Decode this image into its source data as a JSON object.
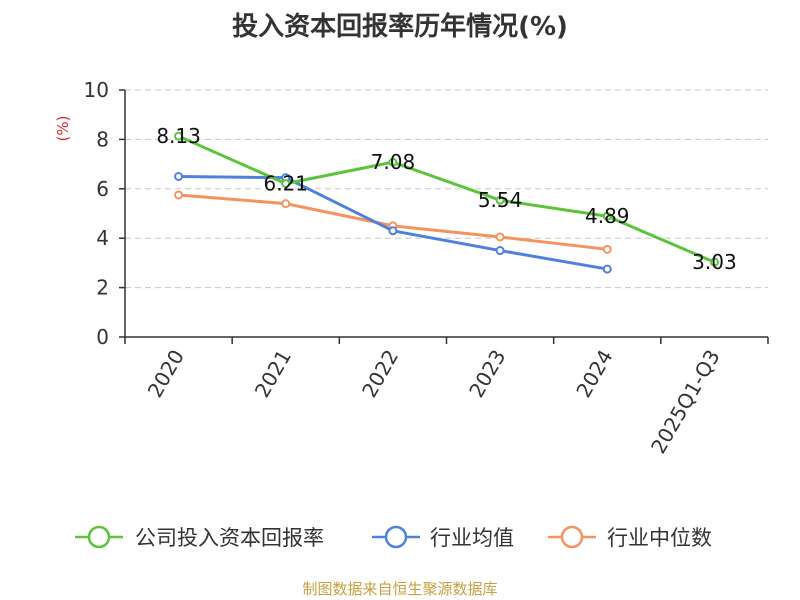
{
  "title": "投入资本回报率历年情况(%)",
  "source_note": "制图数据来自恒生聚源数据库",
  "chart_data": {
    "type": "line",
    "title": "投入资本回报率历年情况(%)",
    "ylabel": "(%)",
    "xlabel": "",
    "ylim": [
      0,
      10
    ],
    "yticks": [
      0,
      2,
      4,
      6,
      8,
      10
    ],
    "grid": true,
    "legend_position": "bottom",
    "categories": [
      "2020",
      "2021",
      "2022",
      "2023",
      "2024",
      "2025Q1-Q3"
    ],
    "series": [
      {
        "name": "公司投入资本回报率",
        "color": "#5cc43a",
        "values": [
          8.13,
          6.21,
          7.08,
          5.54,
          4.89,
          3.03
        ],
        "labels": [
          "8.13",
          "6.21",
          "7.08",
          "5.54",
          "4.89",
          "3.03"
        ]
      },
      {
        "name": "行业均值",
        "color": "#4f81dc",
        "values": [
          6.5,
          6.45,
          4.3,
          3.5,
          2.75,
          null
        ]
      },
      {
        "name": "行业中位数",
        "color": "#f4935f",
        "values": [
          5.75,
          5.4,
          4.5,
          4.05,
          3.55,
          null
        ]
      }
    ]
  }
}
